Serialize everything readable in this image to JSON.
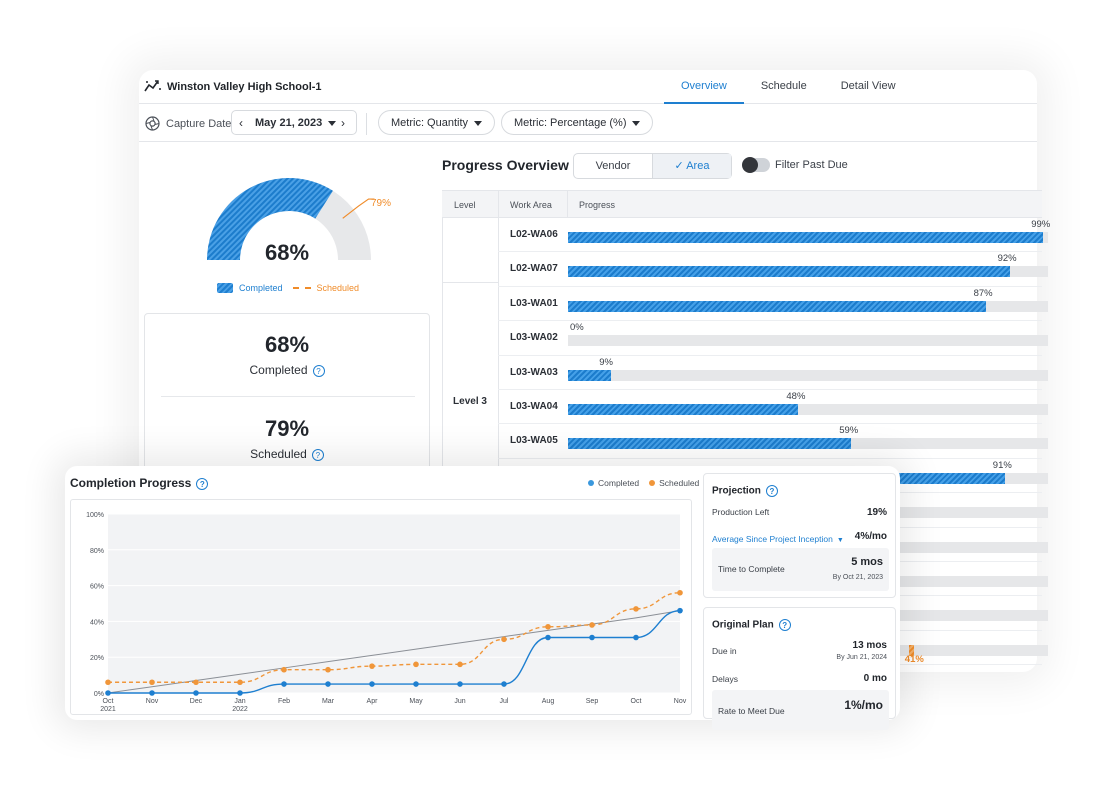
{
  "app": {
    "title": "Winston Valley High School-1"
  },
  "tabs": [
    {
      "label": "Overview",
      "active": true
    },
    {
      "label": "Schedule",
      "active": false
    },
    {
      "label": "Detail View",
      "active": false
    }
  ],
  "controls": {
    "capture_label": "Capture Date",
    "date": "May 21, 2023",
    "metric_quantity": "Metric: Quantity",
    "metric_percentage": "Metric: Percentage (%)"
  },
  "gauge": {
    "completed_value": 68,
    "completed_label": "68%",
    "scheduled_value": 79,
    "scheduled_label": "79%",
    "legend_completed": "Completed",
    "legend_scheduled": "Scheduled"
  },
  "kpis": [
    {
      "value": "68%",
      "label": "Completed"
    },
    {
      "value": "79%",
      "label": "Scheduled"
    }
  ],
  "progress_overview": {
    "title": "Progress Overview",
    "segments": [
      "Vendor",
      "Area"
    ],
    "active_segment": "Area",
    "filter_label": "Filter Past Due",
    "columns": [
      "Level",
      "Work Area",
      "Progress"
    ],
    "level_3_label": "Level 3",
    "rows": [
      {
        "work_area": "L02-WA06",
        "progress": 99,
        "label": "99%"
      },
      {
        "work_area": "L02-WA07",
        "progress": 92,
        "label": "92%"
      },
      {
        "work_area": "L03-WA01",
        "progress": 87,
        "label": "87%"
      },
      {
        "work_area": "L03-WA02",
        "progress": 0,
        "label": "0%"
      },
      {
        "work_area": "L03-WA03",
        "progress": 9,
        "label": "9%"
      },
      {
        "work_area": "L03-WA04",
        "progress": 48,
        "label": "48%"
      },
      {
        "work_area": "L03-WA05",
        "progress": 59,
        "label": "59%"
      },
      {
        "work_area": "",
        "progress": 91,
        "label": "91%"
      },
      {
        "work_area": "",
        "progress": 48,
        "label": ""
      },
      {
        "work_area": "",
        "progress": 0,
        "label": ""
      },
      {
        "work_area": "",
        "progress": 0,
        "label": ""
      },
      {
        "work_area": "",
        "progress": 0,
        "label": ""
      },
      {
        "work_area": "",
        "progress": 41,
        "label": "41%",
        "color": "orange"
      }
    ]
  },
  "completion_progress": {
    "title": "Completion Progress",
    "legend_completed": "Completed",
    "legend_scheduled": "Scheduled"
  },
  "chart_data": {
    "type": "line",
    "title": "Completion Progress",
    "x": [
      "Oct 2021",
      "Nov",
      "Dec",
      "Jan 2022",
      "Feb",
      "Mar",
      "Apr",
      "May",
      "Jun",
      "Jul",
      "Aug",
      "Sep",
      "Oct",
      "Nov"
    ],
    "y_ticks": [
      "0%",
      "20%",
      "40%",
      "60%",
      "80%",
      "100%"
    ],
    "ylim": [
      0,
      100
    ],
    "series": [
      {
        "name": "Completed",
        "color": "#1e7fd0",
        "values": [
          0,
          0,
          0,
          0,
          5,
          5,
          5,
          5,
          5,
          5,
          31,
          31,
          31,
          46
        ]
      },
      {
        "name": "Scheduled",
        "color": "#f0963a",
        "values": [
          6,
          6,
          6,
          6,
          13,
          13,
          15,
          16,
          16,
          30,
          37,
          38,
          47,
          56
        ]
      },
      {
        "name": "",
        "color": "#8b8f96",
        "values": [
          0,
          3.5,
          7,
          10.5,
          14,
          17.5,
          21,
          24.5,
          28,
          31.5,
          35,
          38.5,
          42,
          46
        ]
      }
    ],
    "grid": true
  },
  "projection": {
    "title": "Projection",
    "production_left_label": "Production Left",
    "production_left_value": "19%",
    "average_label": "Average Since Project Inception",
    "average_value": "4%/mo",
    "time_to_complete_label": "Time to Complete",
    "time_to_complete_value": "5 mos",
    "time_to_complete_sub": "By Oct 21, 2023"
  },
  "original_plan": {
    "title": "Original Plan",
    "due_label": "Due in",
    "due_value": "13 mos",
    "due_sub": "By Jun 21, 2024",
    "delays_label": "Delays",
    "delays_value": "0 mo",
    "rate_label": "Rate to Meet Due",
    "rate_value": "1%/mo"
  }
}
